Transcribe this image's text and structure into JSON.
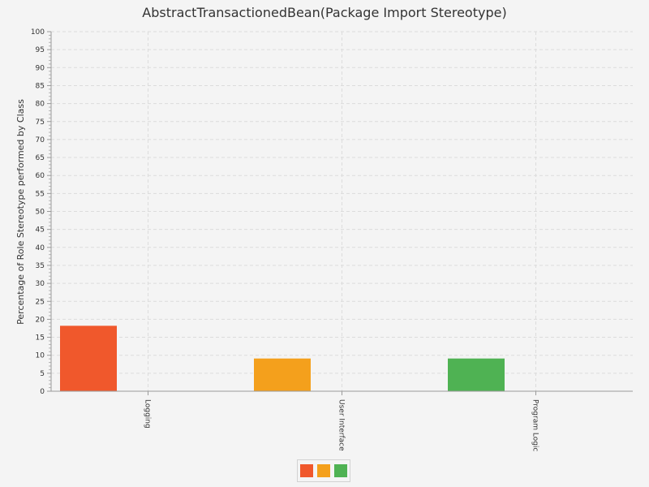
{
  "chart_data": {
    "type": "bar",
    "title": "AbstractTransactionedBean(Package Import Stereotype)",
    "xlabel": "",
    "ylabel": "Percentage of Role Stereotype performed by Class",
    "categories": [
      "Logging",
      "User Interface",
      "Program Logic"
    ],
    "series": [
      {
        "values": [
          18.2,
          9.1,
          9.1
        ]
      }
    ],
    "ylim": [
      0,
      100
    ],
    "y_ticks": [
      "0",
      "5",
      "10",
      "15",
      "20",
      "25",
      "30",
      "35",
      "40",
      "45",
      "50",
      "55",
      "60",
      "65",
      "70",
      "75",
      "80",
      "85",
      "90",
      "95",
      "100"
    ],
    "bar_colors": [
      "#f0582c",
      "#f4a01c",
      "#4fb253"
    ],
    "grid": true,
    "legend": "bottom-center"
  }
}
